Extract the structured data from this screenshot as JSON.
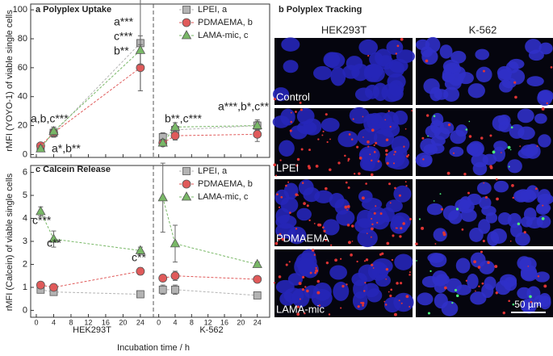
{
  "chart_data": [
    {
      "type": "line",
      "title": "a Polyplex Uptake",
      "y_label": "rMFI (YOYO-1) of viable single cells",
      "ylim": [
        -2,
        104
      ],
      "yticks": [
        0,
        20,
        40,
        60,
        80,
        100
      ],
      "x": [
        1,
        4,
        24
      ],
      "xlim": [
        -1.3,
        27
      ],
      "xticks": [
        0,
        4,
        8,
        12,
        16,
        20,
        24
      ],
      "legend": "upper right",
      "series": [
        {
          "name": "LPEI, a",
          "color": "#b3b3b3",
          "marker": "square",
          "values": [
            [
              5,
              15,
              77
            ],
            [
              12,
              17,
              20
            ]
          ],
          "errors": [
            [
              2,
              3,
              33
            ],
            [
              3,
              3,
              4
            ]
          ]
        },
        {
          "name": "PDMAEMA, b",
          "color": "#e05a5a",
          "marker": "circle",
          "values": [
            [
              6,
              15,
              60
            ],
            [
              8,
              13,
              14
            ]
          ],
          "errors": [
            [
              2,
              3,
              16
            ],
            [
              2,
              3,
              5
            ]
          ]
        },
        {
          "name": "LAMA-mic, c",
          "color": "#79b867",
          "marker": "triangle",
          "values": [
            [
              4,
              16,
              72
            ],
            [
              8,
              19,
              20
            ]
          ],
          "errors": [
            [
              2,
              3,
              10
            ],
            [
              2,
              3,
              3
            ]
          ]
        }
      ],
      "annotations": [
        "a***",
        "c***",
        "b**",
        "a,b,c***",
        "a*,b**",
        "b**,c***",
        "a***,b*,c**"
      ]
    },
    {
      "type": "line",
      "title": "c Calcein Release",
      "y_label": "rMFI (Calcein) of viable single cells",
      "ylim": [
        -0.3,
        6.3
      ],
      "yticks": [
        0,
        1,
        2,
        3,
        4,
        5,
        6
      ],
      "x": [
        1,
        4,
        24
      ],
      "xlim": [
        -1.3,
        27
      ],
      "xticks": [
        0,
        4,
        8,
        12,
        16,
        20,
        24
      ],
      "legend": "upper right",
      "groups": [
        "HEK293T",
        "K-562"
      ],
      "x_label": "Incubation time / h",
      "series": [
        {
          "name": "LPEI, a",
          "color": "#b3b3b3",
          "marker": "square",
          "values": [
            [
              0.9,
              0.8,
              0.7
            ],
            [
              0.9,
              0.9,
              0.65
            ]
          ],
          "errors": [
            [
              0.1,
              0.1,
              0.05
            ],
            [
              0.2,
              0.2,
              0.05
            ]
          ]
        },
        {
          "name": "PDMAEMA, b",
          "color": "#e05a5a",
          "marker": "circle",
          "values": [
            [
              1.1,
              1.0,
              1.7
            ],
            [
              1.4,
              1.5,
              1.35
            ]
          ],
          "errors": [
            [
              0.1,
              0.1,
              0.15
            ],
            [
              0.15,
              0.2,
              0.1
            ]
          ]
        },
        {
          "name": "LAMA-mic, c",
          "color": "#79b867",
          "marker": "triangle",
          "values": [
            [
              4.3,
              3.1,
              2.6
            ],
            [
              4.9,
              2.9,
              2.0
            ]
          ],
          "errors": [
            [
              0.2,
              0.35,
              0.15
            ],
            [
              1.5,
              0.8,
              0.1
            ]
          ]
        }
      ],
      "annotations": [
        "c***",
        "c**",
        "c**"
      ]
    }
  ],
  "panel_b": {
    "title": "b Polyplex Tracking",
    "columns": [
      "HEK293T",
      "K-562"
    ],
    "rows": [
      "Control",
      "LPEI",
      "PDMAEMA",
      "LAMA-mic"
    ],
    "scale_bar": "50 µm"
  }
}
